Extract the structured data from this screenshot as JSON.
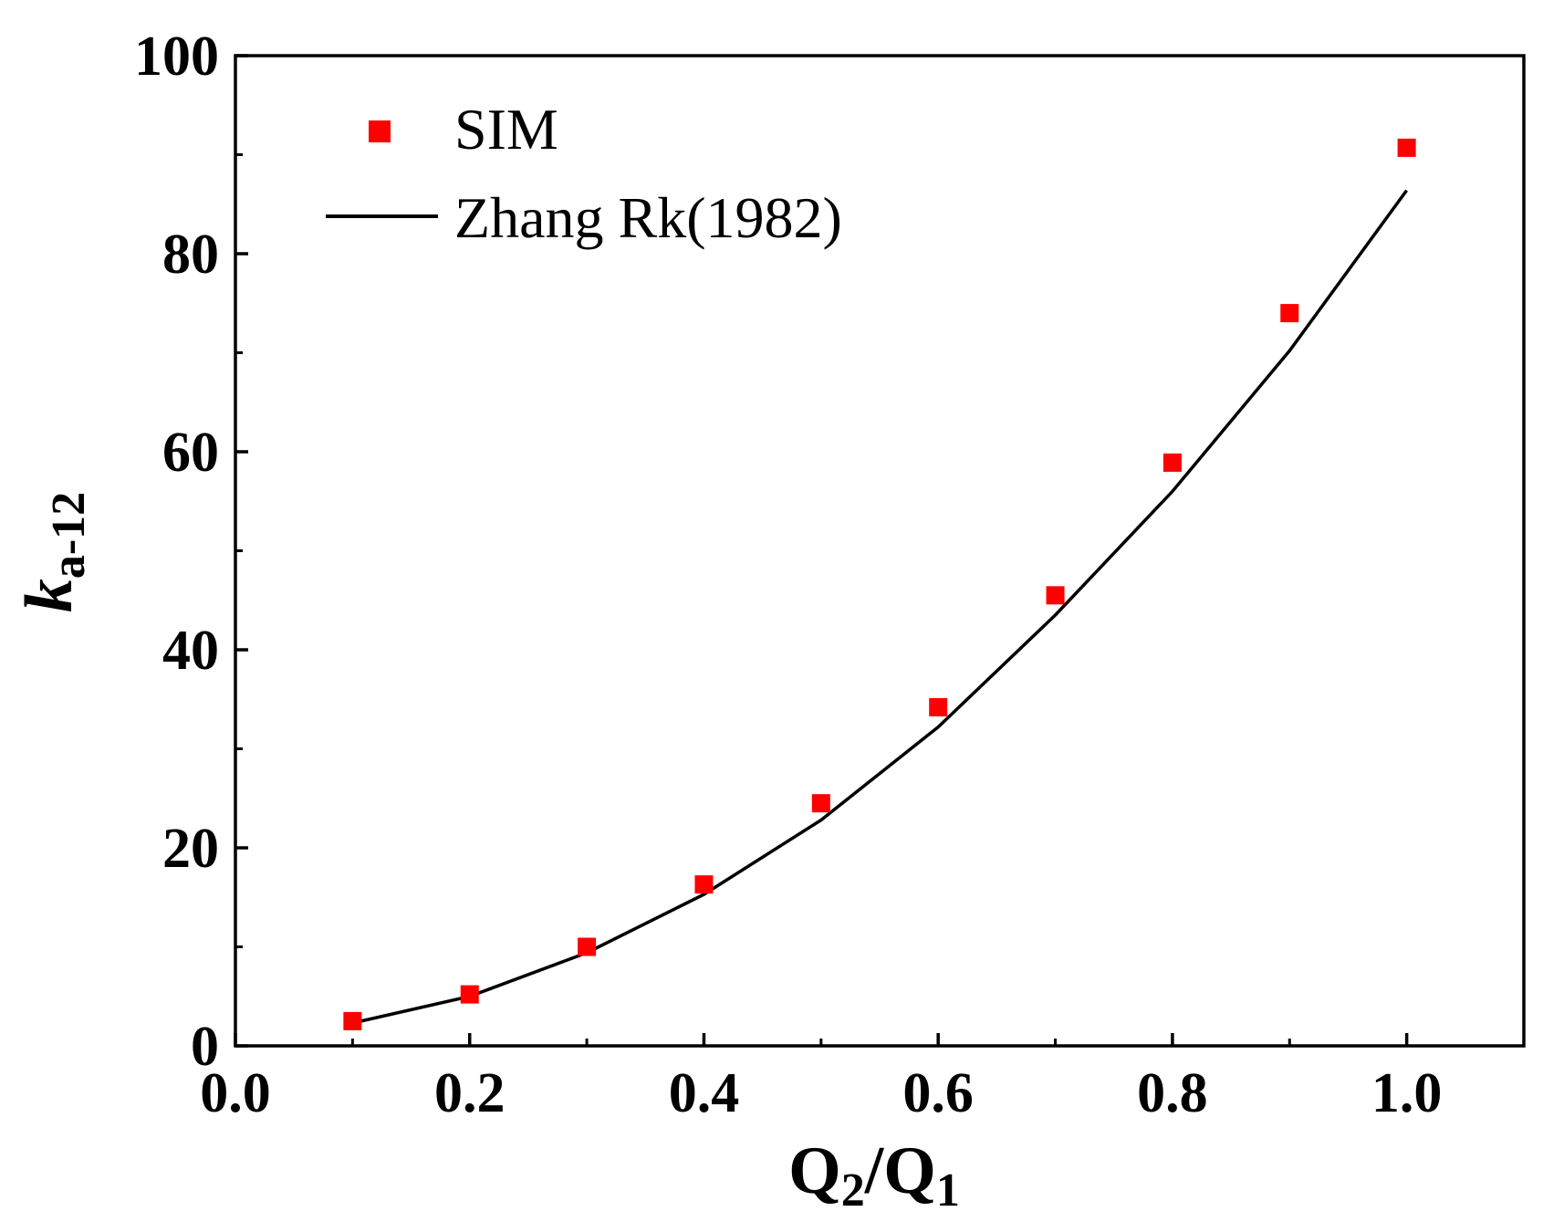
{
  "chart_data": {
    "type": "scatter",
    "title": "",
    "xlabel": {
      "base": "Q",
      "sub1": "2",
      "sep": "/Q",
      "sub2": "1"
    },
    "ylabel": {
      "base": "k",
      "sub": "a-12"
    },
    "xlim": [
      0.0,
      1.1
    ],
    "ylim": [
      0,
      100
    ],
    "xticks": [
      "0.0",
      "0.2",
      "0.4",
      "0.6",
      "0.8",
      "1.0"
    ],
    "xtick_values": [
      0.0,
      0.2,
      0.4,
      0.6,
      0.8,
      1.0
    ],
    "yticks": [
      "0",
      "20",
      "40",
      "60",
      "80",
      "100"
    ],
    "ytick_values": [
      0,
      20,
      40,
      60,
      80,
      100
    ],
    "grid": false,
    "legend_position": "top-left",
    "series": [
      {
        "name": "SIM",
        "kind": "scatter",
        "marker": "square",
        "color": "#ff0000",
        "x": [
          0.1,
          0.2,
          0.3,
          0.4,
          0.5,
          0.6,
          0.7,
          0.8,
          0.9,
          1.0
        ],
        "y": [
          2.5,
          5.2,
          10.0,
          16.3,
          24.5,
          34.2,
          45.5,
          58.9,
          74.0,
          90.7
        ]
      },
      {
        "name": "Zhang Rk(1982)",
        "kind": "line",
        "color": "#000000",
        "x": [
          0.1,
          0.2,
          0.3,
          0.4,
          0.5,
          0.6,
          0.7,
          0.8,
          0.9,
          1.0
        ],
        "y": [
          2.3,
          5.0,
          9.4,
          15.3,
          22.8,
          32.2,
          43.5,
          56.0,
          70.2,
          86.4
        ]
      }
    ]
  }
}
